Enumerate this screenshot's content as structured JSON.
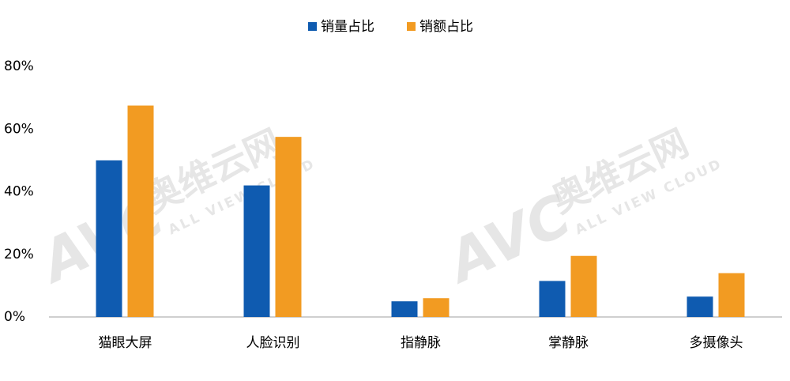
{
  "chart_data": {
    "type": "bar",
    "categories": [
      "猫眼大屏",
      "人脸识别",
      "指静脉",
      "掌静脉",
      "多摄像头"
    ],
    "series": [
      {
        "name": "销量占比",
        "color": "#0f5bb0",
        "values": [
          50,
          42,
          5,
          11.5,
          6.5
        ]
      },
      {
        "name": "销额占比",
        "color": "#f29b22",
        "values": [
          67.5,
          57.5,
          6,
          19.5,
          14
        ]
      }
    ],
    "ylim": [
      0,
      80
    ],
    "yticks": [
      {
        "value": 0,
        "label": "0%"
      },
      {
        "value": 20,
        "label": "20%"
      },
      {
        "value": 40,
        "label": "40%"
      },
      {
        "value": 60,
        "label": "60%"
      },
      {
        "value": 80,
        "label": "80%"
      }
    ],
    "grid": false,
    "legend": "top",
    "watermark": {
      "logo": "AVC",
      "name": "奥维云网",
      "tagline": "ALL VIEW CLOUD"
    }
  }
}
